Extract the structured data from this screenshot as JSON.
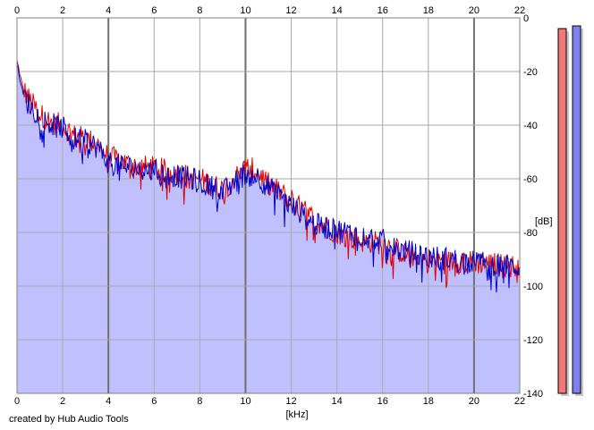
{
  "credit": "created by Hub Audio Tools",
  "chart_data": {
    "type": "area",
    "xlabel": "[kHz]",
    "ylabel": "[dB]",
    "xlim": [
      0,
      22
    ],
    "ylim": [
      -140,
      0
    ],
    "x_ticks": [
      "0",
      "2",
      "4",
      "6",
      "8",
      "10",
      "12",
      "14",
      "16",
      "18",
      "20",
      "22"
    ],
    "y_ticks": [
      "0",
      "-20",
      "-40",
      "-60",
      "-80",
      "-100",
      "-120",
      "-140"
    ],
    "grid": true,
    "colors": {
      "left": "#e00000",
      "right": "#0000c8",
      "fill": "#c0c0ff",
      "meter_left": "#f07878",
      "meter_right": "#8080f0"
    },
    "series": [
      {
        "channel": "red",
        "x": [
          0,
          0.25,
          0.5,
          1,
          1.5,
          2,
          2.5,
          3,
          3.5,
          4,
          4.5,
          5,
          6,
          7,
          8,
          9,
          10,
          10.5,
          11,
          12,
          13,
          14,
          15,
          16,
          16.5,
          17,
          18,
          19,
          20,
          21,
          22
        ],
        "values": [
          -16,
          -26,
          -30,
          -36,
          -39,
          -40,
          -44,
          -45,
          -47,
          -52,
          -53,
          -55,
          -56,
          -58,
          -60,
          -64,
          -56,
          -57,
          -62,
          -68,
          -75,
          -80,
          -83,
          -84,
          -86,
          -88,
          -90,
          -91,
          -91,
          -92,
          -93
        ]
      },
      {
        "channel": "blue",
        "x": [
          0,
          0.25,
          0.5,
          1,
          1.5,
          2,
          2.5,
          3,
          3.5,
          4,
          4.5,
          5,
          6,
          7,
          8,
          9,
          10,
          10.5,
          11,
          12,
          13,
          14,
          15,
          16,
          16.5,
          17,
          18,
          19,
          20,
          21,
          22
        ],
        "values": [
          -17,
          -28,
          -32,
          -37,
          -40,
          -41,
          -45,
          -46,
          -48,
          -54,
          -55,
          -56,
          -57,
          -59,
          -61,
          -65,
          -58,
          -59,
          -63,
          -70,
          -77,
          -79,
          -81,
          -83,
          -86,
          -87,
          -89,
          -90,
          -91,
          -92,
          -93
        ]
      }
    ],
    "meters": [
      {
        "channel": "left",
        "value_db": -4
      },
      {
        "channel": "right",
        "value_db": -3
      }
    ]
  }
}
